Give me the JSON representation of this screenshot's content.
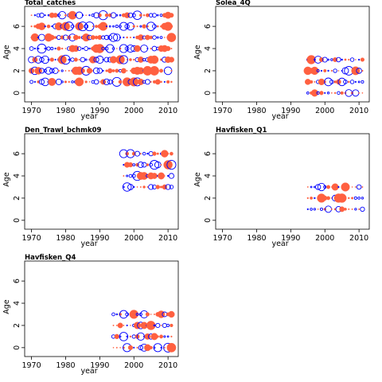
{
  "chart_data": [
    {
      "type": "scatter",
      "title": "Total_catches",
      "xlabel": "year",
      "ylabel": "Age",
      "xlim": [
        1968,
        2013
      ],
      "ylim": [
        -0.8,
        7.8
      ],
      "xticks": [
        1970,
        1980,
        1990,
        2000,
        2010
      ],
      "yticks": [
        0,
        2,
        4,
        6
      ],
      "grid": false,
      "legend": "none",
      "series": [
        {
          "color": "#FF6040",
          "marker": "filled-circle",
          "meaning": "positive residual"
        },
        {
          "color": "#0000FF",
          "marker": "open-circle",
          "meaning": "negative residual"
        }
      ],
      "x_range_data": [
        1970,
        2011
      ],
      "ages": [
        1,
        2,
        3,
        4,
        5,
        6,
        7
      ]
    },
    {
      "type": "scatter",
      "title": "Solea_4Q",
      "xlabel": "year",
      "ylabel": "Age",
      "xlim": [
        1968,
        2013
      ],
      "ylim": [
        -0.8,
        7.8
      ],
      "xticks": [
        1970,
        1980,
        1990,
        2000,
        2010
      ],
      "yticks": [
        0,
        2,
        4,
        6
      ],
      "grid": false,
      "legend": "none",
      "x_range_data": [
        1995,
        2011
      ],
      "ages": [
        0,
        1,
        2,
        3
      ]
    },
    {
      "type": "scatter",
      "title": "Den_Trawl_bchmk09",
      "xlabel": "year",
      "ylabel": "Age",
      "xlim": [
        1968,
        2013
      ],
      "ylim": [
        -0.8,
        7.8
      ],
      "xticks": [
        1970,
        1980,
        1990,
        2000,
        2010
      ],
      "yticks": [
        0,
        2,
        4,
        6
      ],
      "grid": false,
      "legend": "none",
      "x_range_data": [
        1997,
        2011
      ],
      "ages": [
        3,
        4,
        5,
        6
      ]
    },
    {
      "type": "scatter",
      "title": "Havfisken_Q1",
      "xlabel": "year",
      "ylabel": "Age",
      "xlim": [
        1968,
        2013
      ],
      "ylim": [
        -0.8,
        7.8
      ],
      "xticks": [
        1970,
        1980,
        1990,
        2000,
        2010
      ],
      "yticks": [
        0,
        2,
        4,
        6
      ],
      "grid": false,
      "legend": "none",
      "x_range_data": [
        1995,
        2011
      ],
      "ages": [
        1,
        2,
        3
      ]
    },
    {
      "type": "scatter",
      "title": "Havfisken_Q4",
      "xlabel": "year",
      "ylabel": "Age",
      "xlim": [
        1968,
        2013
      ],
      "ylim": [
        -0.8,
        7.8
      ],
      "xticks": [
        1970,
        1980,
        1990,
        2000,
        2010
      ],
      "yticks": [
        0,
        2,
        4,
        6
      ],
      "grid": false,
      "legend": "none",
      "x_range_data": [
        1994,
        2011
      ],
      "ages": [
        0,
        1,
        2,
        3
      ]
    }
  ]
}
